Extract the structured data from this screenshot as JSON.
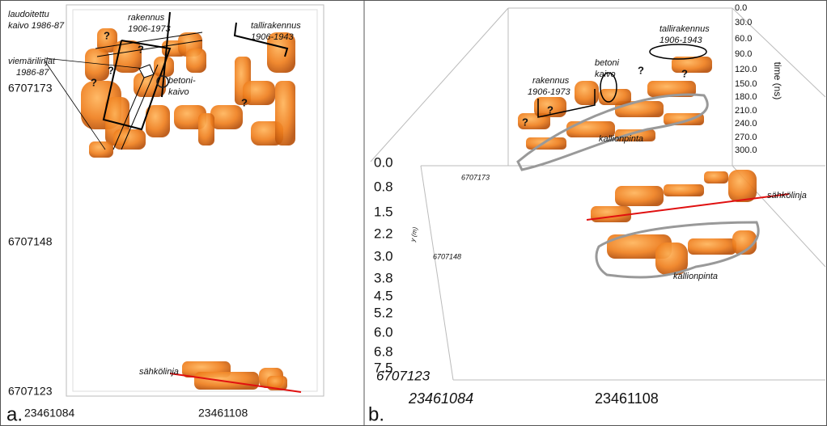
{
  "panel_a": {
    "label": "a.",
    "annotations": [
      [
        "laudoitettu",
        "kaivo 1986-87"
      ],
      [
        "rakennus",
        "1906-1973"
      ],
      [
        "tallirakennus",
        "1906-1943"
      ],
      [
        "viemärilinjat",
        "1986-87"
      ],
      [
        "betoni-",
        "kaivo"
      ],
      [
        "sähkölinja"
      ]
    ],
    "unknowns": [
      "?",
      "?",
      "?",
      "?",
      "?"
    ],
    "y_ticks": [
      "6707173",
      "6707148",
      "6707123"
    ],
    "x_ticks": [
      "23461084",
      "23461108"
    ]
  },
  "panel_b": {
    "label": "b.",
    "depth_ticks": [
      "0.0",
      "0.8",
      "1.5",
      "2.2",
      "3.0",
      "3.8",
      "4.5",
      "5.2",
      "6.0",
      "6.8",
      "7.5"
    ],
    "time_ticks": [
      "0.0",
      "30.0",
      "60.0",
      "90.0",
      "120.0",
      "150.0",
      "180.0",
      "210.0",
      "240.0",
      "270.0",
      "300.0"
    ],
    "time_label": "time (ns)",
    "y_label": "y (m)",
    "northing_ticks": [
      "6707173",
      "6707148",
      "6707123"
    ],
    "easting_ticks": [
      "23461084",
      "23461108"
    ],
    "annotations": [
      [
        "tallirakennus",
        "1906-1943"
      ],
      [
        "rakennus",
        "1906-1973"
      ],
      [
        "betoni",
        "kaivo"
      ],
      [
        "kallionpinta"
      ],
      [
        "sähkölinja"
      ],
      [
        "kallionpinta"
      ]
    ],
    "unknowns": [
      "?",
      "?",
      "?",
      "?"
    ]
  }
}
